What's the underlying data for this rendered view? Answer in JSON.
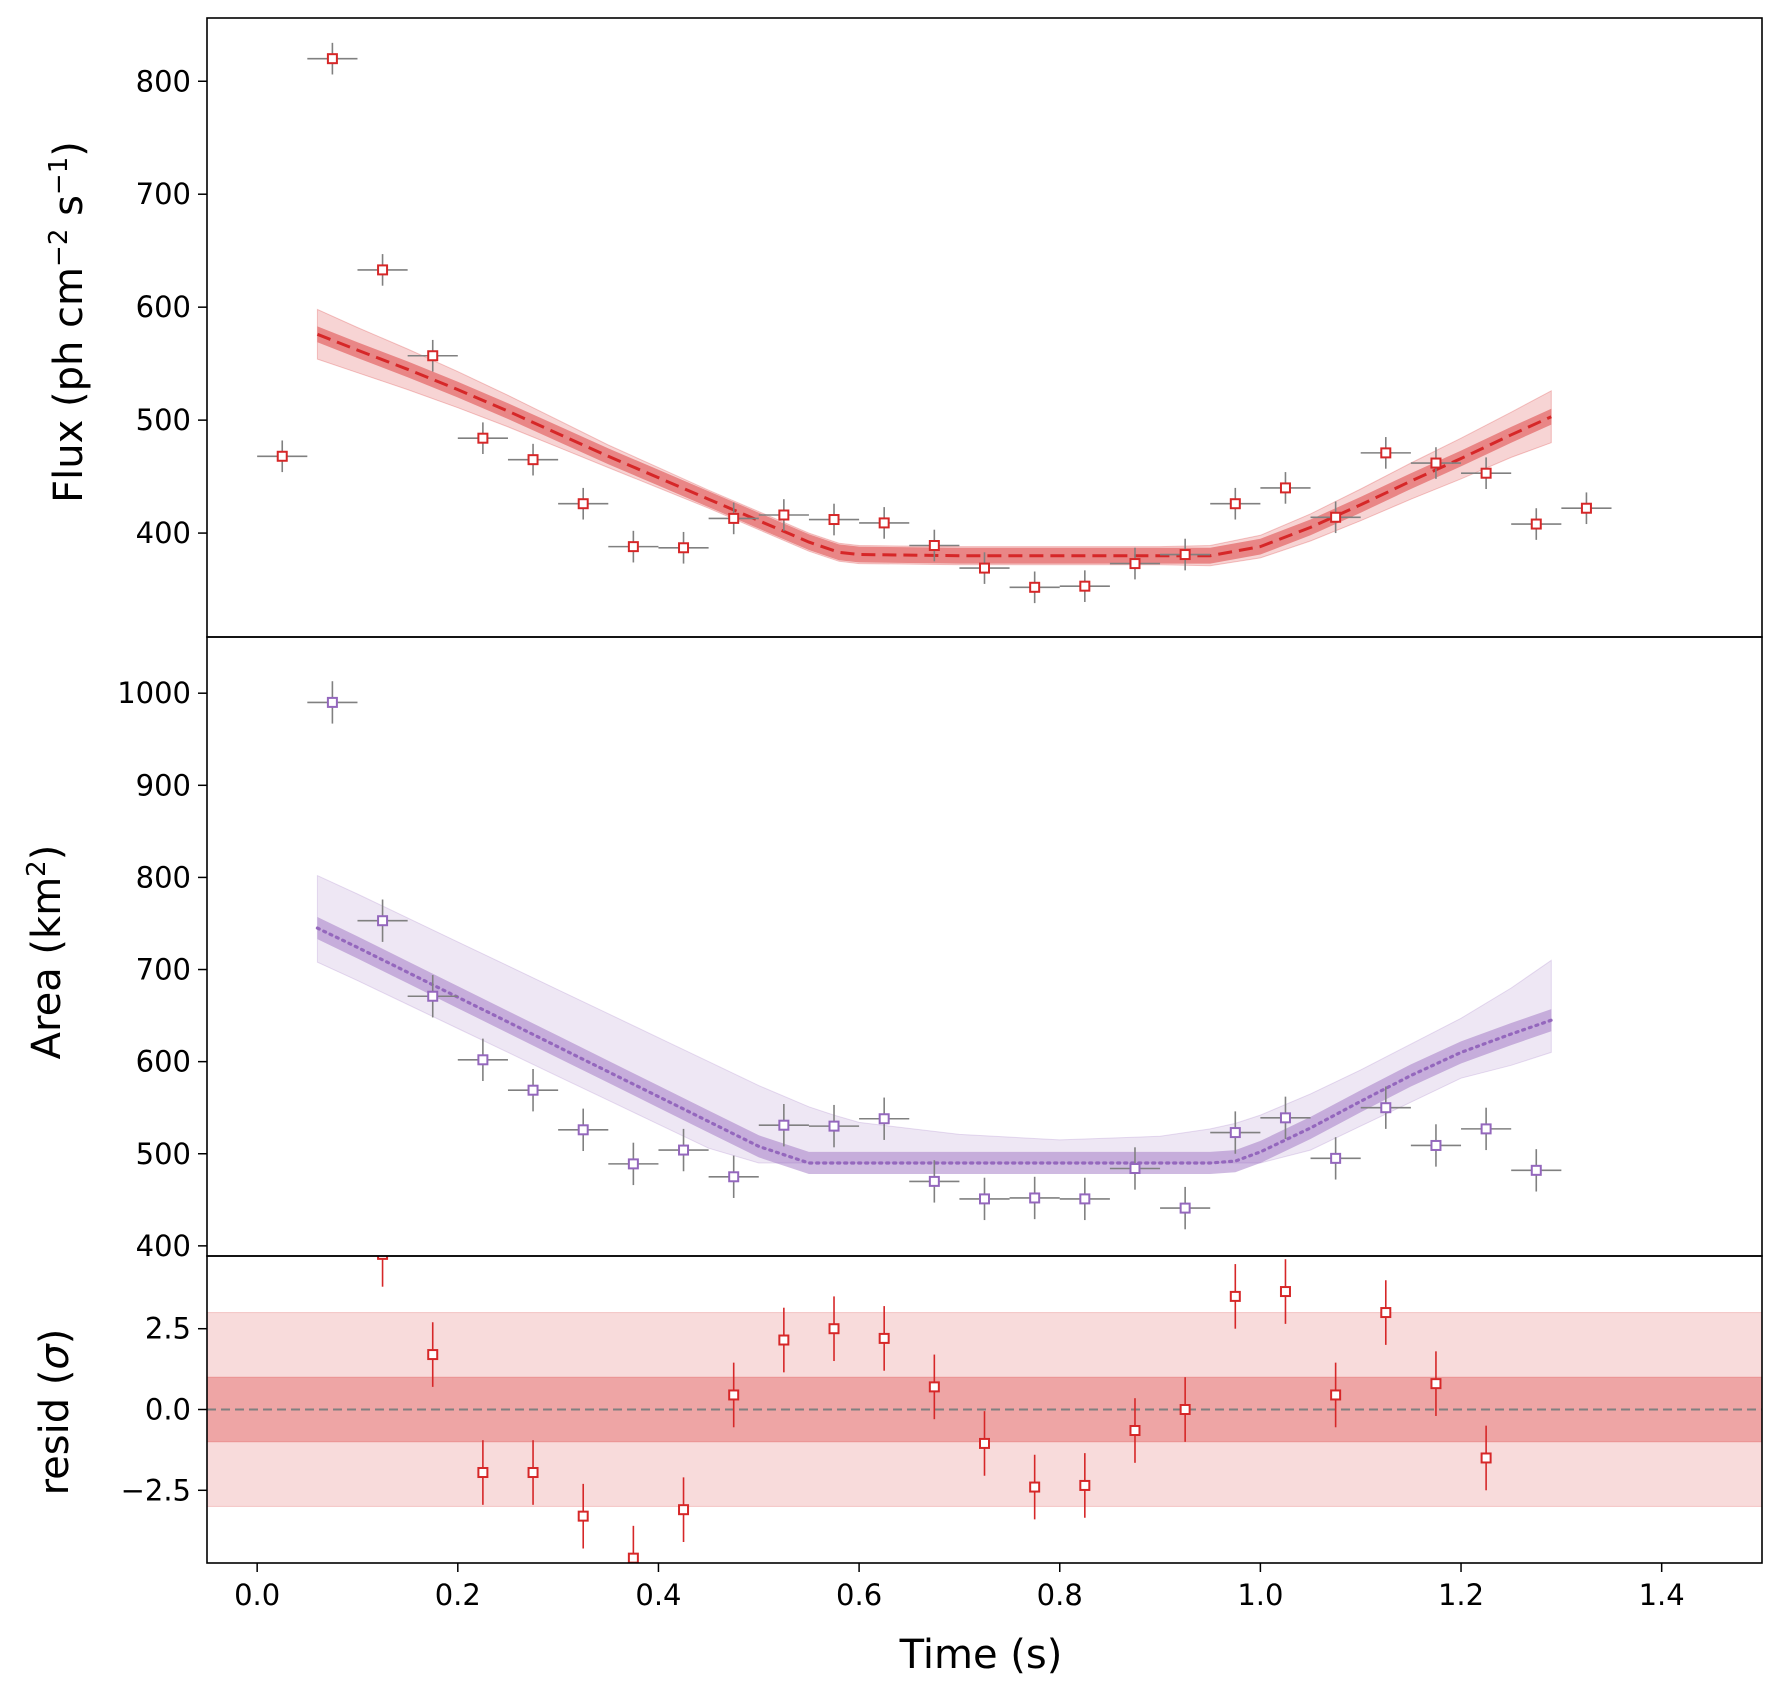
{
  "chart_data": [
    {
      "type": "scatter",
      "panel": "flux",
      "ylabel": {
        "prefix": "Flux (ph cm",
        "sup1": "−2",
        "mid": " s",
        "sup2": "−1",
        "suffix": ")"
      },
      "xlim": [
        -0.05,
        1.5
      ],
      "ylim": [
        308,
        856
      ],
      "yticks": [
        400,
        500,
        600,
        700,
        800
      ],
      "points": {
        "x": [
          0.025,
          0.075,
          0.125,
          0.175,
          0.225,
          0.275,
          0.325,
          0.375,
          0.425,
          0.475,
          0.525,
          0.575,
          0.625,
          0.675,
          0.725,
          0.775,
          0.825,
          0.875,
          0.925,
          0.975,
          1.025,
          1.075,
          1.125,
          1.175,
          1.225,
          1.275,
          1.325
        ],
        "y": [
          468,
          820,
          633,
          557,
          484,
          465,
          426,
          388,
          387,
          413,
          416,
          412,
          409,
          389,
          369,
          352,
          353,
          373,
          381,
          426,
          440,
          414,
          471,
          462,
          453,
          408,
          422
        ],
        "yerr": 14,
        "xerr": 0.025
      },
      "model": {
        "x": [
          0.06,
          0.1,
          0.15,
          0.2,
          0.25,
          0.3,
          0.35,
          0.4,
          0.45,
          0.5,
          0.55,
          0.58,
          0.6,
          0.7,
          0.8,
          0.9,
          0.95,
          1.0,
          1.05,
          1.1,
          1.15,
          1.2,
          1.25,
          1.29
        ],
        "y": [
          576,
          562,
          545,
          527,
          508,
          488,
          468,
          449,
          430,
          411,
          392,
          383,
          381,
          380,
          380,
          380,
          380,
          388,
          405,
          425,
          446,
          466,
          487,
          503
        ],
        "inner_band": 7,
        "outer_band": [
          22,
          20,
          18,
          16,
          14,
          12,
          10,
          9,
          8,
          8,
          8,
          8,
          8,
          8,
          8,
          8,
          9,
          10,
          12,
          14,
          16,
          18,
          20,
          23
        ]
      }
    },
    {
      "type": "scatter",
      "panel": "area",
      "ylabel": {
        "prefix": "Area (km",
        "sup1": "2",
        "suffix": ")"
      },
      "xlim": [
        -0.05,
        1.5
      ],
      "ylim": [
        389,
        1061
      ],
      "yticks": [
        400,
        500,
        600,
        700,
        800,
        900,
        1000
      ],
      "points": {
        "x": [
          0.075,
          0.125,
          0.175,
          0.225,
          0.275,
          0.325,
          0.375,
          0.425,
          0.475,
          0.525,
          0.575,
          0.625,
          0.675,
          0.725,
          0.775,
          0.825,
          0.875,
          0.925,
          0.975,
          1.025,
          1.075,
          1.125,
          1.175,
          1.225,
          1.275
        ],
        "y": [
          990,
          753,
          671,
          602,
          569,
          526,
          489,
          504,
          475,
          531,
          530,
          538,
          470,
          451,
          452,
          451,
          484,
          441,
          523,
          539,
          495,
          550,
          509,
          527,
          482
        ],
        "yerr": 23,
        "xerr": 0.025
      },
      "model": {
        "x": [
          0.06,
          0.1,
          0.15,
          0.2,
          0.25,
          0.3,
          0.35,
          0.4,
          0.45,
          0.5,
          0.55,
          0.575,
          0.6,
          0.7,
          0.8,
          0.9,
          0.95,
          0.975,
          1.0,
          1.05,
          1.1,
          1.15,
          1.2,
          1.25,
          1.29
        ],
        "y": [
          745,
          724,
          697,
          670,
          643,
          616,
          589,
          562,
          535,
          508,
          490,
          490,
          490,
          490,
          490,
          490,
          490,
          492,
          502,
          528,
          557,
          585,
          610,
          630,
          645
        ],
        "inner_band": 12,
        "outer_upper": [
          802,
          782,
          756,
          730,
          704,
          678,
          652,
          626,
          600,
          574,
          551,
          542,
          534,
          521,
          515,
          519,
          527,
          533,
          542,
          565,
          591,
          619,
          647,
          680,
          710
        ],
        "outer_lower": [
          708,
          688,
          662,
          636,
          610,
          584,
          558,
          532,
          506,
          490,
          490,
          490,
          490,
          490,
          490,
          490,
          490,
          490,
          490,
          504,
          530,
          556,
          582,
          596,
          610
        ]
      }
    },
    {
      "type": "scatter",
      "panel": "residuals",
      "ylabel": {
        "prefix": "resid (",
        "greek": "σ",
        "suffix": ")"
      },
      "xlabel": "Time (s)",
      "xlim": [
        -0.05,
        1.5
      ],
      "xticks": [
        0.0,
        0.2,
        0.4,
        0.6,
        0.8,
        1.0,
        1.2,
        1.4
      ],
      "xticklabels": [
        "0.0",
        "0.2",
        "0.4",
        "0.6",
        "0.8",
        "1.0",
        "1.2",
        "1.4"
      ],
      "ylim": [
        -4.75,
        4.75
      ],
      "yticks": [
        -2.5,
        0.0,
        2.5
      ],
      "yticklabels": [
        "−2.5",
        "0.0",
        "2.5"
      ],
      "bands": {
        "inner": 1,
        "outer": 3
      },
      "points": {
        "x": [
          0.125,
          0.175,
          0.225,
          0.275,
          0.325,
          0.375,
          0.425,
          0.475,
          0.525,
          0.575,
          0.625,
          0.675,
          0.725,
          0.775,
          0.825,
          0.875,
          0.925,
          0.975,
          1.025,
          1.075,
          1.125,
          1.175,
          1.225
        ],
        "y": [
          4.8,
          1.7,
          -1.95,
          -1.95,
          -3.3,
          -4.6,
          -3.1,
          0.45,
          2.15,
          2.5,
          2.2,
          0.7,
          -1.05,
          -2.4,
          -2.35,
          -0.65,
          0.0,
          3.5,
          3.65,
          0.45,
          3.0,
          0.8,
          -1.5
        ],
        "yerr": 1
      }
    }
  ],
  "colors": {
    "flux": "#d62728",
    "area": "#9467bd",
    "errorbar": "#808080",
    "zero_line": "#808080"
  }
}
